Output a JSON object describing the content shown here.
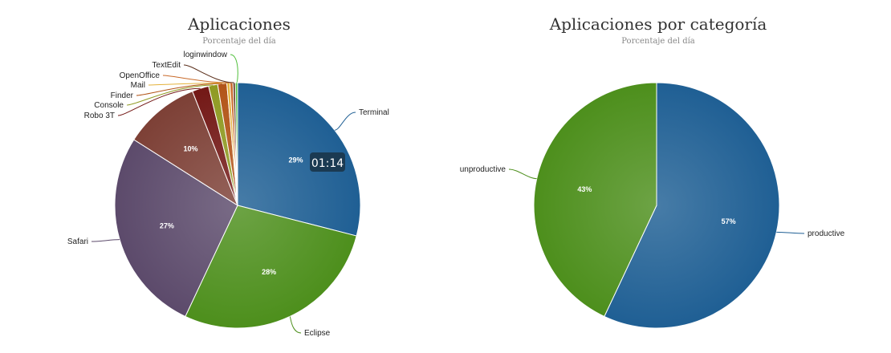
{
  "chart_data": [
    {
      "type": "pie",
      "title": "Aplicaciones",
      "subtitle": "Porcentaje del día",
      "slices": [
        {
          "label": "Terminal",
          "value": 29.0,
          "percent_label": "29%",
          "color": "#1f5f94"
        },
        {
          "label": "Eclipse",
          "value": 28.0,
          "percent_label": "28%",
          "color": "#4d8f1c"
        },
        {
          "label": "Safari",
          "value": 27.0,
          "percent_label": "27%",
          "color": "#5c4a6b"
        },
        {
          "label": "",
          "value": 10.0,
          "percent_label": "10%",
          "color": "#7d4036"
        },
        {
          "label": "Robo 3T",
          "value": 2.2,
          "percent_label": "",
          "color": "#731816"
        },
        {
          "label": "Console",
          "value": 1.2,
          "percent_label": "",
          "color": "#8f9a22"
        },
        {
          "label": "Finder",
          "value": 1.2,
          "percent_label": "",
          "color": "#b25418"
        },
        {
          "label": "Mail",
          "value": 0.4,
          "percent_label": "",
          "color": "#e4b23c"
        },
        {
          "label": "OpenOffice",
          "value": 0.4,
          "percent_label": "",
          "color": "#c96a2a"
        },
        {
          "label": "TextEdit",
          "value": 0.3,
          "percent_label": "",
          "color": "#5a2e1a"
        },
        {
          "label": "loginwindow",
          "value": 0.3,
          "percent_label": "",
          "color": "#4fbf3a"
        }
      ],
      "tooltip": "01:14"
    },
    {
      "type": "pie",
      "title": "Aplicaciones por categoría",
      "subtitle": "Porcentaje del día",
      "slices": [
        {
          "label": "productive",
          "value": 57,
          "percent_label": "57%",
          "color": "#1f5f94"
        },
        {
          "label": "unproductive",
          "value": 43,
          "percent_label": "43%",
          "color": "#4d8f1c"
        }
      ]
    }
  ]
}
